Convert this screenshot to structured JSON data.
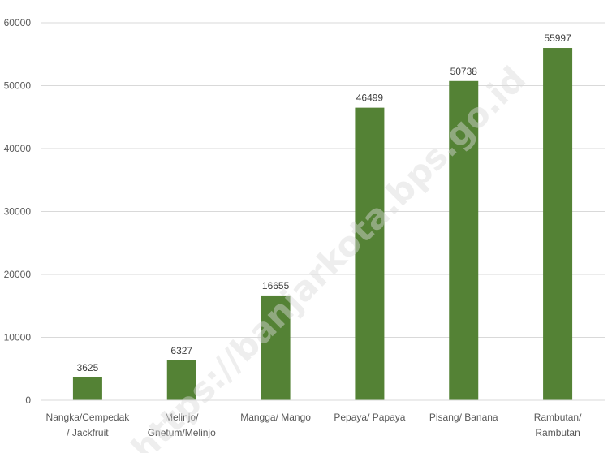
{
  "chart_data": {
    "type": "bar",
    "categories": [
      [
        "Nangka/Cempedak",
        "/ Jackfruit"
      ],
      [
        "Melinjo/",
        "Gnetum/Melinjo"
      ],
      [
        "Mangga/ Mango"
      ],
      [
        "Pepaya/ Papaya"
      ],
      [
        "Pisang/ Banana"
      ],
      [
        "Rambutan/",
        "Rambutan"
      ]
    ],
    "values": [
      3625,
      6327,
      16655,
      46499,
      50738,
      55997
    ],
    "ylim": [
      0,
      60000
    ],
    "yticks": [
      0,
      10000,
      20000,
      30000,
      40000,
      50000,
      60000
    ],
    "grid": true,
    "data_labels": true,
    "bar_color": "#548235",
    "grid_color": "#d9d9d9"
  },
  "watermark": "https://banjarkota.bps.go.id"
}
